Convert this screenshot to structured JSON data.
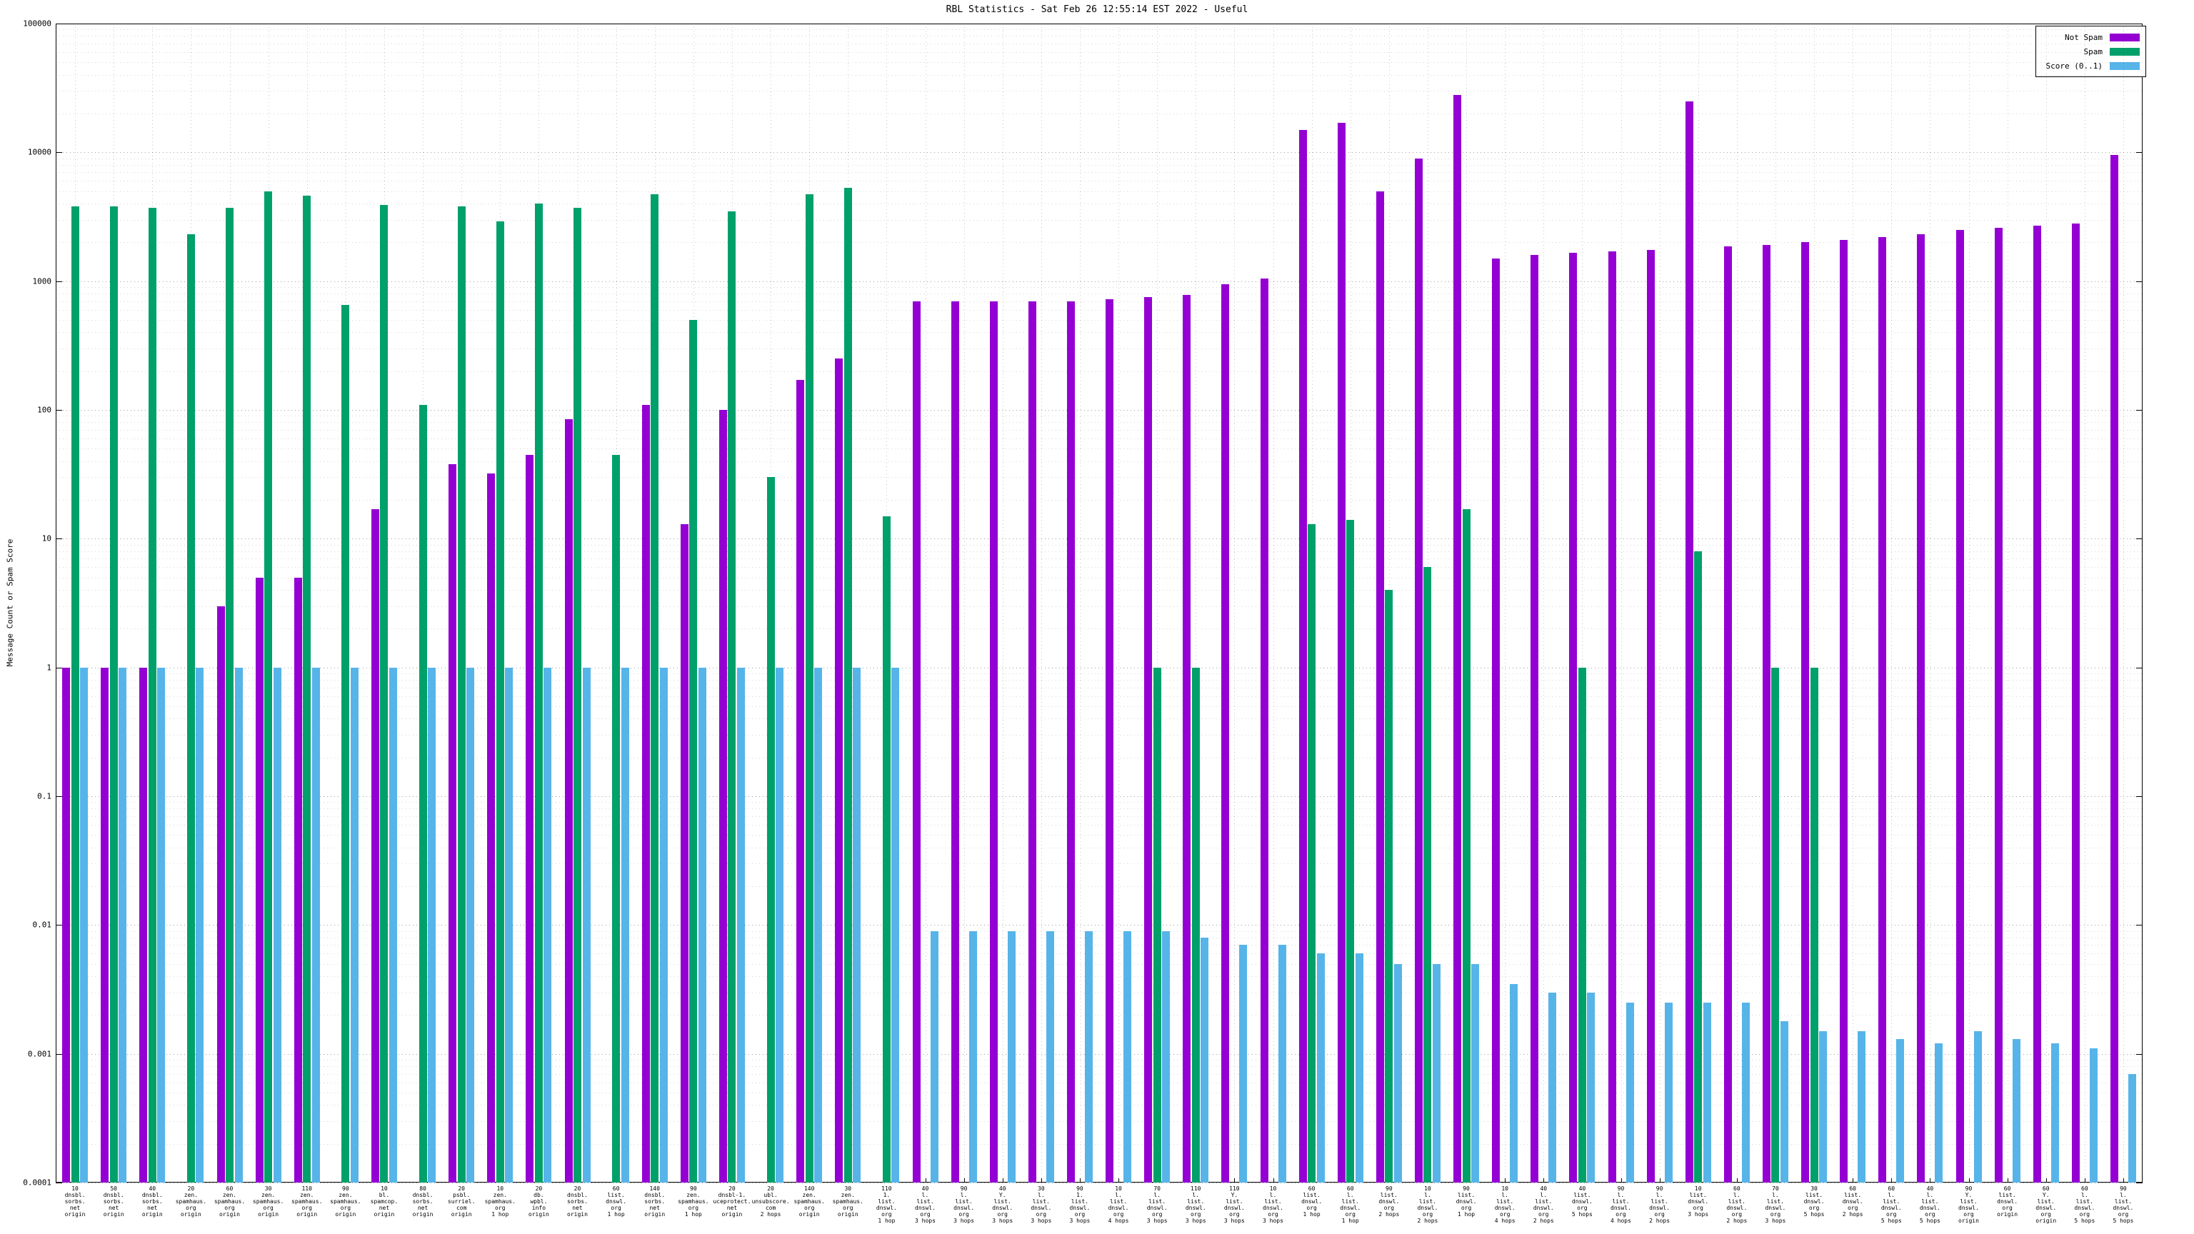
{
  "chart_data": {
    "type": "bar",
    "title": "RBL Statistics - Sat Feb 26 12:55:14 EST 2022 - Useful",
    "xlabel": "",
    "ylabel": "Message Count or Spam Score",
    "ylim": [
      0.0001,
      100000
    ],
    "log_scale": true,
    "grid": true,
    "legend_position": "top-right",
    "yticks": [
      "0.0001",
      "0.001",
      "0.01",
      "0.1",
      "1",
      "10",
      "100",
      "1000",
      "10000",
      "100000"
    ],
    "categories": [
      [
        "10",
        "dnsbl.",
        "sorbs.",
        "net",
        "origin"
      ],
      [
        "50",
        "dnsbl.",
        "sorbs.",
        "net",
        "origin"
      ],
      [
        "40",
        "dnsbl.",
        "sorbs.",
        "net",
        "origin"
      ],
      [
        "20",
        "zen.",
        "spamhaus.",
        "org",
        "origin"
      ],
      [
        "60",
        "zen.",
        "spamhaus.",
        "org",
        "origin"
      ],
      [
        "30",
        "zen.",
        "spamhaus.",
        "org",
        "origin"
      ],
      [
        "110",
        "zen.",
        "spamhaus.",
        "org",
        "origin"
      ],
      [
        "90",
        "zen.",
        "spamhaus.",
        "org",
        "origin"
      ],
      [
        "10",
        "bl.",
        "spamcop.",
        "net",
        "origin"
      ],
      [
        "80",
        "dnsbl.",
        "sorbs.",
        "net",
        "origin"
      ],
      [
        "20",
        "psbl.",
        "surriel.",
        "com",
        "origin"
      ],
      [
        "10",
        "zen.",
        "spamhaus.",
        "org",
        "1 hop"
      ],
      [
        "20",
        "db.",
        "wpbl.",
        "info",
        "origin"
      ],
      [
        "20",
        "dnsbl.",
        "sorbs.",
        "net",
        "origin"
      ],
      [
        "60",
        "list.",
        "dnswl.",
        "org",
        "1 hop"
      ],
      [
        "140",
        "dnsbl.",
        "sorbs.",
        "net",
        "origin"
      ],
      [
        "90",
        "zen.",
        "spamhaus.",
        "org",
        "1 hop"
      ],
      [
        "20",
        "dnsbl-1.",
        "uceprotect.",
        "net",
        "origin"
      ],
      [
        "20",
        "ubl.",
        "unsubscore.",
        "com",
        "2 hops"
      ],
      [
        "140",
        "zen.",
        "spamhaus.",
        "org",
        "origin"
      ],
      [
        "30",
        "zen.",
        "spamhaus.",
        "org",
        "origin"
      ],
      [
        "110",
        "1.",
        "list.",
        "dnswl.",
        "org",
        "1 hop"
      ],
      [
        "40",
        "l.",
        "list.",
        "dnswl.",
        "org",
        "3 hops"
      ],
      [
        "90",
        "l.",
        "list.",
        "dnswl.",
        "org",
        "3 hops"
      ],
      [
        "40",
        "Y.",
        "list.",
        "dnswl.",
        "org",
        "3 hops"
      ],
      [
        "30",
        "l.",
        "list.",
        "dnswl.",
        "org",
        "3 hops"
      ],
      [
        "90",
        "1.",
        "list.",
        "dnswl.",
        "org",
        "3 hops"
      ],
      [
        "10",
        "l.",
        "list.",
        "dnswl.",
        "org",
        "4 hops"
      ],
      [
        "70",
        "l.",
        "list.",
        "dnswl.",
        "org",
        "3 hops"
      ],
      [
        "110",
        "l.",
        "list.",
        "dnswl.",
        "org",
        "3 hops"
      ],
      [
        "110",
        "Y.",
        "list.",
        "dnswl.",
        "org",
        "3 hops"
      ],
      [
        "10",
        "l.",
        "list.",
        "dnswl.",
        "org",
        "3 hops"
      ],
      [
        "60",
        "list.",
        "dnswl.",
        "org",
        "1 hop"
      ],
      [
        "60",
        "l.",
        "list.",
        "dnswl.",
        "org",
        "1 hop"
      ],
      [
        "90",
        "list.",
        "dnswl.",
        "org",
        "2 hops"
      ],
      [
        "10",
        "l.",
        "list.",
        "dnswl.",
        "org",
        "2 hops"
      ],
      [
        "90",
        "list.",
        "dnswl.",
        "org",
        "1 hop"
      ],
      [
        "10",
        "l.",
        "list.",
        "dnswl.",
        "org",
        "4 hops"
      ],
      [
        "40",
        "l.",
        "list.",
        "dnswl.",
        "org",
        "2 hops"
      ],
      [
        "40",
        "list.",
        "dnswl.",
        "org",
        "5 hops"
      ],
      [
        "90",
        "l.",
        "list.",
        "dnswl.",
        "org",
        "4 hops"
      ],
      [
        "90",
        "l.",
        "list.",
        "dnswl.",
        "org",
        "2 hops"
      ],
      [
        "10",
        "list.",
        "dnswl.",
        "org",
        "3 hops"
      ],
      [
        "60",
        "l.",
        "list.",
        "dnswl.",
        "org",
        "2 hops"
      ],
      [
        "70",
        "l.",
        "list.",
        "dnswl.",
        "org",
        "3 hops"
      ],
      [
        "30",
        "list.",
        "dnswl.",
        "org",
        "5 hops"
      ],
      [
        "60",
        "list.",
        "dnswl.",
        "org",
        "2 hops"
      ],
      [
        "60",
        "l.",
        "list.",
        "dnswl.",
        "org",
        "5 hops"
      ],
      [
        "40",
        "l.",
        "list.",
        "dnswl.",
        "org",
        "5 hops"
      ],
      [
        "90",
        "Y.",
        "list.",
        "dnswl.",
        "org",
        "origin"
      ],
      [
        "60",
        "list.",
        "dnswl.",
        "org",
        "origin"
      ],
      [
        "60",
        "Y.",
        "list.",
        "dnswl.",
        "org",
        "origin"
      ],
      [
        "60",
        "l.",
        "list.",
        "dnswl.",
        "org",
        "5 hops"
      ],
      [
        "90",
        "l.",
        "list.",
        "dnswl.",
        "org",
        "5 hops"
      ]
    ],
    "series": [
      {
        "name": "Not Spam",
        "color": "#9400D3",
        "values": [
          1,
          1,
          1,
          0,
          3,
          5,
          5,
          0,
          17,
          0,
          38,
          32,
          45,
          85,
          0,
          110,
          13,
          100,
          0,
          170,
          250,
          0,
          700,
          700,
          700,
          700,
          700,
          720,
          750,
          780,
          950,
          1050,
          15000,
          17000,
          5000,
          9000,
          28000,
          1500,
          1600,
          1650,
          1700,
          1750,
          25000,
          1850,
          1900,
          2000,
          2100,
          2200,
          2300,
          2500,
          2600,
          2700,
          2800,
          9500
        ]
      },
      {
        "name": "Spam",
        "color": "#00A06A",
        "values": [
          3800,
          3800,
          3700,
          2300,
          3700,
          5000,
          4600,
          650,
          3900,
          110,
          3800,
          2900,
          4000,
          3700,
          45,
          4700,
          500,
          3500,
          30,
          4700,
          5300,
          15,
          0,
          0,
          0,
          0,
          0,
          0,
          1,
          1,
          0,
          0,
          13,
          14,
          4,
          6,
          17,
          0,
          0,
          1,
          0,
          0,
          8,
          0,
          1,
          1,
          0,
          0,
          0,
          0,
          0,
          0,
          0,
          0
        ]
      },
      {
        "name": "Score (0..1)",
        "color": "#56B4E9",
        "values": [
          1,
          1,
          1,
          1,
          1,
          1,
          1,
          1,
          1,
          1,
          1,
          1,
          1,
          1,
          1,
          1,
          1,
          1,
          1,
          1,
          1,
          1,
          0.009,
          0.009,
          0.009,
          0.009,
          0.009,
          0.009,
          0.009,
          0.008,
          0.007,
          0.007,
          0.006,
          0.006,
          0.005,
          0.005,
          0.005,
          0.0035,
          0.003,
          0.003,
          0.0025,
          0.0025,
          0.0025,
          0.0025,
          0.0018,
          0.0015,
          0.0015,
          0.0013,
          0.0012,
          0.0015,
          0.0013,
          0.0012,
          0.0011,
          0.0007
        ]
      }
    ]
  }
}
